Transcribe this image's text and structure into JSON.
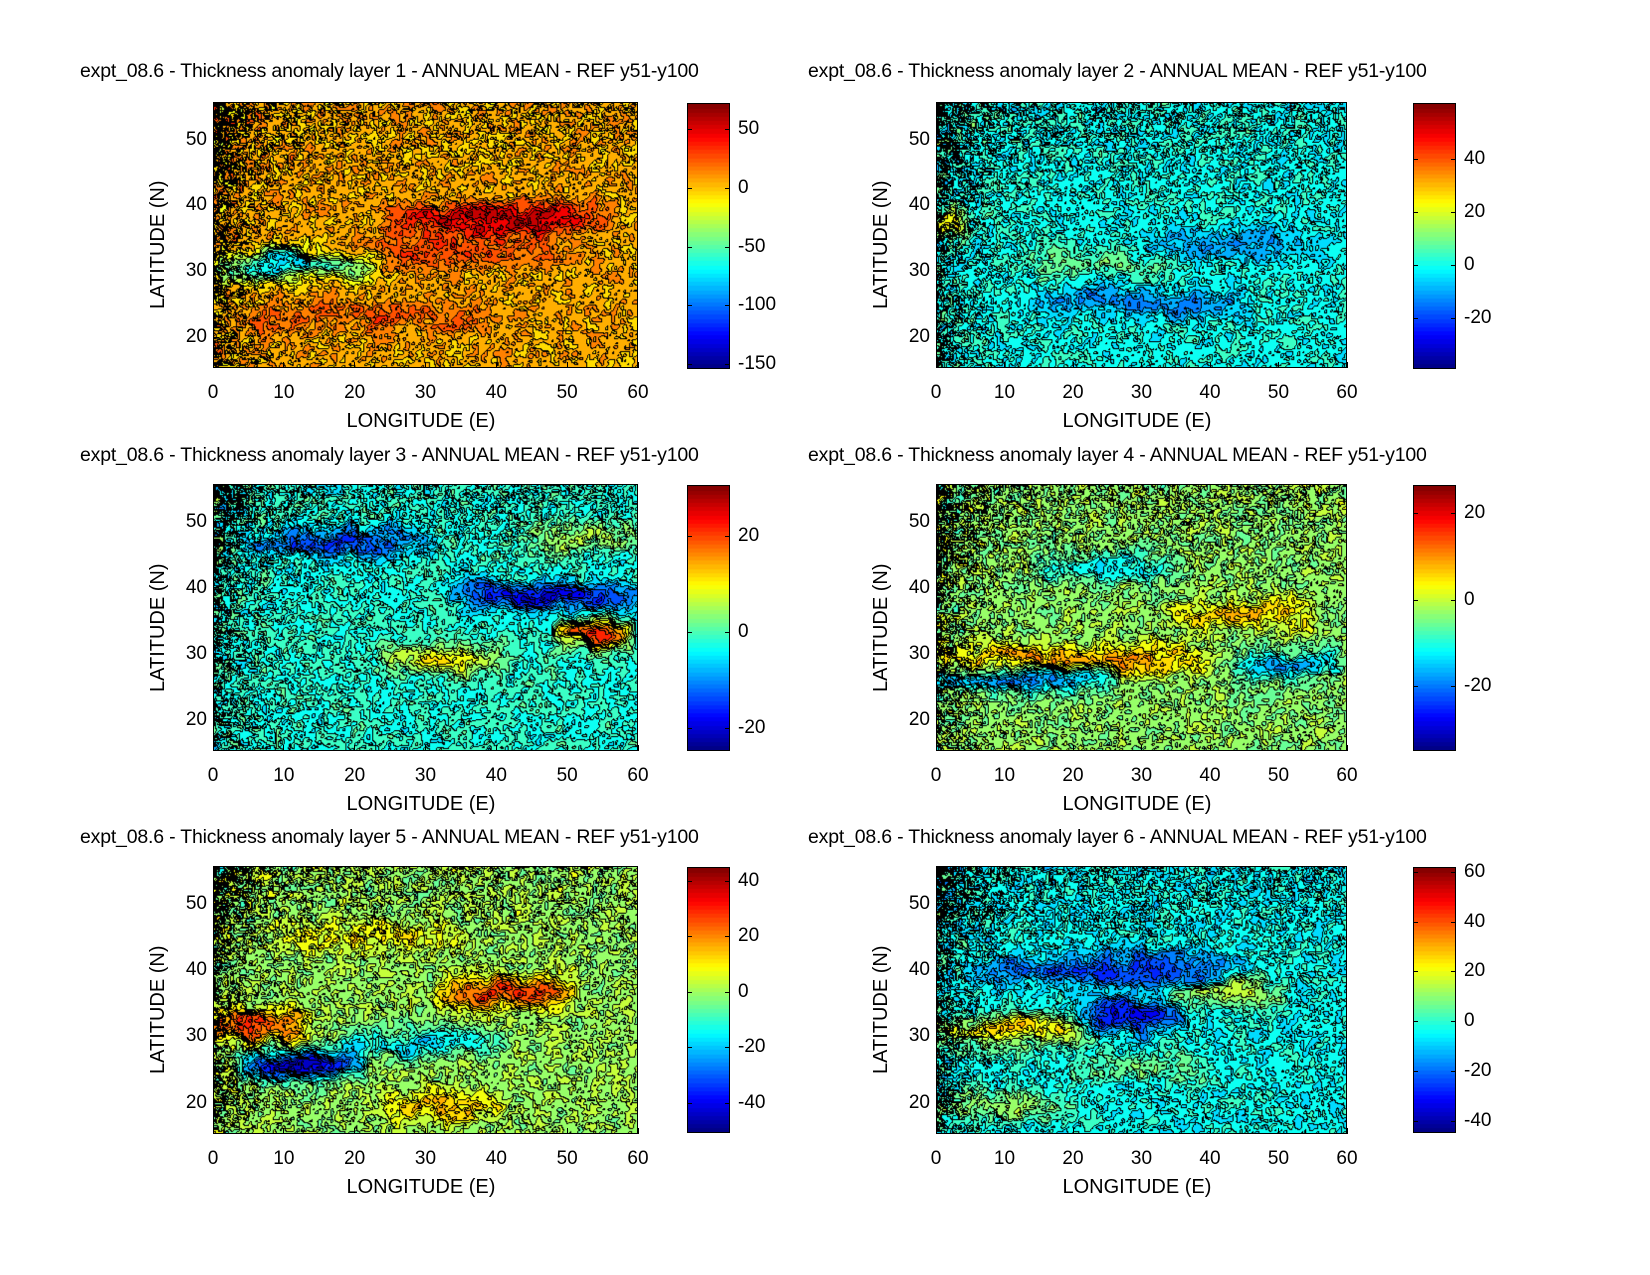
{
  "figure": {
    "colormap": "jet",
    "panels_count": 6
  },
  "chart_data": [
    {
      "type": "heatmap",
      "subtype": "filled-contour",
      "title": "expt_08.6 - Thickness anomaly layer 1 - ANNUAL MEAN - REF y51-y100",
      "xlabel": "LONGITUDE (E)",
      "ylabel": "LATITUDE (N)",
      "xlim": [
        0,
        60
      ],
      "ylim": [
        15.3,
        55.7
      ],
      "xticks": [
        0,
        10,
        20,
        30,
        40,
        50,
        60
      ],
      "yticks": [
        20,
        30,
        40,
        50
      ],
      "colorbar": {
        "range": [
          -154,
          72
        ],
        "ticks": [
          50,
          0,
          -50,
          -100,
          -150
        ]
      },
      "background_value": 5,
      "features": [
        {
          "desc": "positive band along jet",
          "lon": [
            25,
            55
          ],
          "lat": 38,
          "value": 55
        },
        {
          "desc": "negative core near western boundary jet",
          "lon": [
            0,
            22
          ],
          "lat": 31,
          "value": -80
        },
        {
          "desc": "positive band",
          "lon": [
            15,
            50
          ],
          "lat": 33,
          "value": 25
        },
        {
          "desc": "positive southern band",
          "lon": [
            0,
            45
          ],
          "lat": 23,
          "value": 18
        }
      ]
    },
    {
      "type": "heatmap",
      "subtype": "filled-contour",
      "title": "expt_08.6 - Thickness anomaly layer 2 - ANNUAL MEAN - REF y51-y100",
      "xlabel": "LONGITUDE (E)",
      "ylabel": "LATITUDE (N)",
      "xlim": [
        0,
        60
      ],
      "ylim": [
        15.3,
        55.7
      ],
      "xticks": [
        0,
        10,
        20,
        30,
        40,
        50,
        60
      ],
      "yticks": [
        20,
        30,
        40,
        50
      ],
      "colorbar": {
        "range": [
          -39,
          61
        ],
        "ticks": [
          40,
          20,
          0,
          -20
        ]
      },
      "background_value": 0,
      "features": [
        {
          "desc": "negative gyre",
          "lon": [
            15,
            45
          ],
          "lat": 25,
          "value": -14
        },
        {
          "desc": "negative band",
          "lon": [
            30,
            55
          ],
          "lat": 34,
          "value": -10
        },
        {
          "desc": "positive band",
          "lon": [
            10,
            35
          ],
          "lat": 31,
          "value": 8
        },
        {
          "desc": "positive western boundary",
          "lon": [
            0,
            3
          ],
          "lat": 37,
          "value": 25
        }
      ]
    },
    {
      "type": "heatmap",
      "subtype": "filled-contour",
      "title": "expt_08.6 - Thickness anomaly layer 3 - ANNUAL MEAN - REF y51-y100",
      "xlabel": "LONGITUDE (E)",
      "ylabel": "LATITUDE (N)",
      "xlim": [
        0,
        60
      ],
      "ylim": [
        15.3,
        55.7
      ],
      "xticks": [
        0,
        10,
        20,
        30,
        40,
        50,
        60
      ],
      "yticks": [
        20,
        30,
        40,
        50
      ],
      "colorbar": {
        "range": [
          -24.7,
          30.7
        ],
        "ticks": [
          20,
          0,
          -20
        ]
      },
      "background_value": -2,
      "features": [
        {
          "desc": "negative northern region",
          "lon": [
            5,
            30
          ],
          "lat": 47,
          "value": -12
        },
        {
          "desc": "negative jet band",
          "lon": [
            35,
            60
          ],
          "lat": 39,
          "value": -18
        },
        {
          "desc": "positive eastern core",
          "lon": [
            50,
            58
          ],
          "lat": 33,
          "value": 25
        },
        {
          "desc": "positive band",
          "lon": [
            25,
            40
          ],
          "lat": 29,
          "value": 12
        },
        {
          "desc": "positive northeast",
          "lon": [
            45,
            60
          ],
          "lat": 48,
          "value": 8
        }
      ]
    },
    {
      "type": "heatmap",
      "subtype": "filled-contour",
      "title": "expt_08.6 - Thickness anomaly layer 4 - ANNUAL MEAN - REF y51-y100",
      "xlabel": "LONGITUDE (E)",
      "ylabel": "LATITUDE (N)",
      "xlim": [
        0,
        60
      ],
      "ylim": [
        15.3,
        55.7
      ],
      "xticks": [
        0,
        10,
        20,
        30,
        40,
        50,
        60
      ],
      "yticks": [
        20,
        30,
        40,
        50
      ],
      "colorbar": {
        "range": [
          -35,
          26.5
        ],
        "ticks": [
          20,
          0,
          -20
        ]
      },
      "background_value": -3,
      "features": [
        {
          "desc": "positive band",
          "lon": [
            0,
            40
          ],
          "lat": 29,
          "value": 14
        },
        {
          "desc": "positive band",
          "lon": [
            35,
            55
          ],
          "lat": 36,
          "value": 10
        },
        {
          "desc": "negative band",
          "lon": [
            0,
            25
          ],
          "lat": 26,
          "value": -18
        },
        {
          "desc": "negative northern band",
          "lon": [
            15,
            35
          ],
          "lat": 43,
          "value": -9
        },
        {
          "desc": "negative eastern core",
          "lon": [
            45,
            58
          ],
          "lat": 28,
          "value": -15
        }
      ]
    },
    {
      "type": "heatmap",
      "subtype": "filled-contour",
      "title": "expt_08.6 - Thickness anomaly layer 5 - ANNUAL MEAN - REF y51-y100",
      "xlabel": "LONGITUDE (E)",
      "ylabel": "LATITUDE (N)",
      "xlim": [
        0,
        60
      ],
      "ylim": [
        15.3,
        55.7
      ],
      "xticks": [
        0,
        10,
        20,
        30,
        40,
        50,
        60
      ],
      "yticks": [
        20,
        30,
        40,
        50
      ],
      "colorbar": {
        "range": [
          -51,
          45
        ],
        "ticks": [
          40,
          20,
          0,
          -20,
          -40
        ]
      },
      "background_value": 0,
      "features": [
        {
          "desc": "negative core",
          "lon": [
            5,
            20
          ],
          "lat": 26,
          "value": -45
        },
        {
          "desc": "negative band",
          "lon": [
            20,
            40
          ],
          "lat": 29,
          "value": -18
        },
        {
          "desc": "positive jet band",
          "lon": [
            33,
            50
          ],
          "lat": 37,
          "value": 30
        },
        {
          "desc": "positive western core",
          "lon": [
            0,
            12
          ],
          "lat": 31.5,
          "value": 28
        },
        {
          "desc": "positive northern region",
          "lon": [
            10,
            35
          ],
          "lat": 45,
          "value": 10
        },
        {
          "desc": "positive southern band",
          "lon": [
            25,
            40
          ],
          "lat": 19,
          "value": 15
        }
      ]
    },
    {
      "type": "heatmap",
      "subtype": "filled-contour",
      "title": "expt_08.6 - Thickness anomaly layer 6 - ANNUAL MEAN - REF y51-y100",
      "xlabel": "LONGITUDE (E)",
      "ylabel": "LATITUDE (N)",
      "xlim": [
        0,
        60
      ],
      "ylim": [
        15.3,
        55.7
      ],
      "xticks": [
        0,
        10,
        20,
        30,
        40,
        50,
        60
      ],
      "yticks": [
        20,
        30,
        40,
        50
      ],
      "colorbar": {
        "range": [
          -45,
          62
        ],
        "ticks": [
          60,
          40,
          20,
          0,
          -20,
          -40
        ]
      },
      "background_value": -4,
      "features": [
        {
          "desc": "negative band",
          "lon": [
            5,
            45
          ],
          "lat": 40,
          "value": -22
        },
        {
          "desc": "negative core",
          "lon": [
            22,
            35
          ],
          "lat": 33,
          "value": -30
        },
        {
          "desc": "positive western band",
          "lon": [
            0,
            22
          ],
          "lat": 30.5,
          "value": 30
        },
        {
          "desc": "positive jet band",
          "lon": [
            35,
            50
          ],
          "lat": 36.5,
          "value": 22
        },
        {
          "desc": "positive southern band",
          "lon": [
            0,
            20
          ],
          "lat": 19,
          "value": 14
        },
        {
          "desc": "positive mid band",
          "lon": [
            20,
            40
          ],
          "lat": 25,
          "value": 10
        }
      ]
    }
  ]
}
